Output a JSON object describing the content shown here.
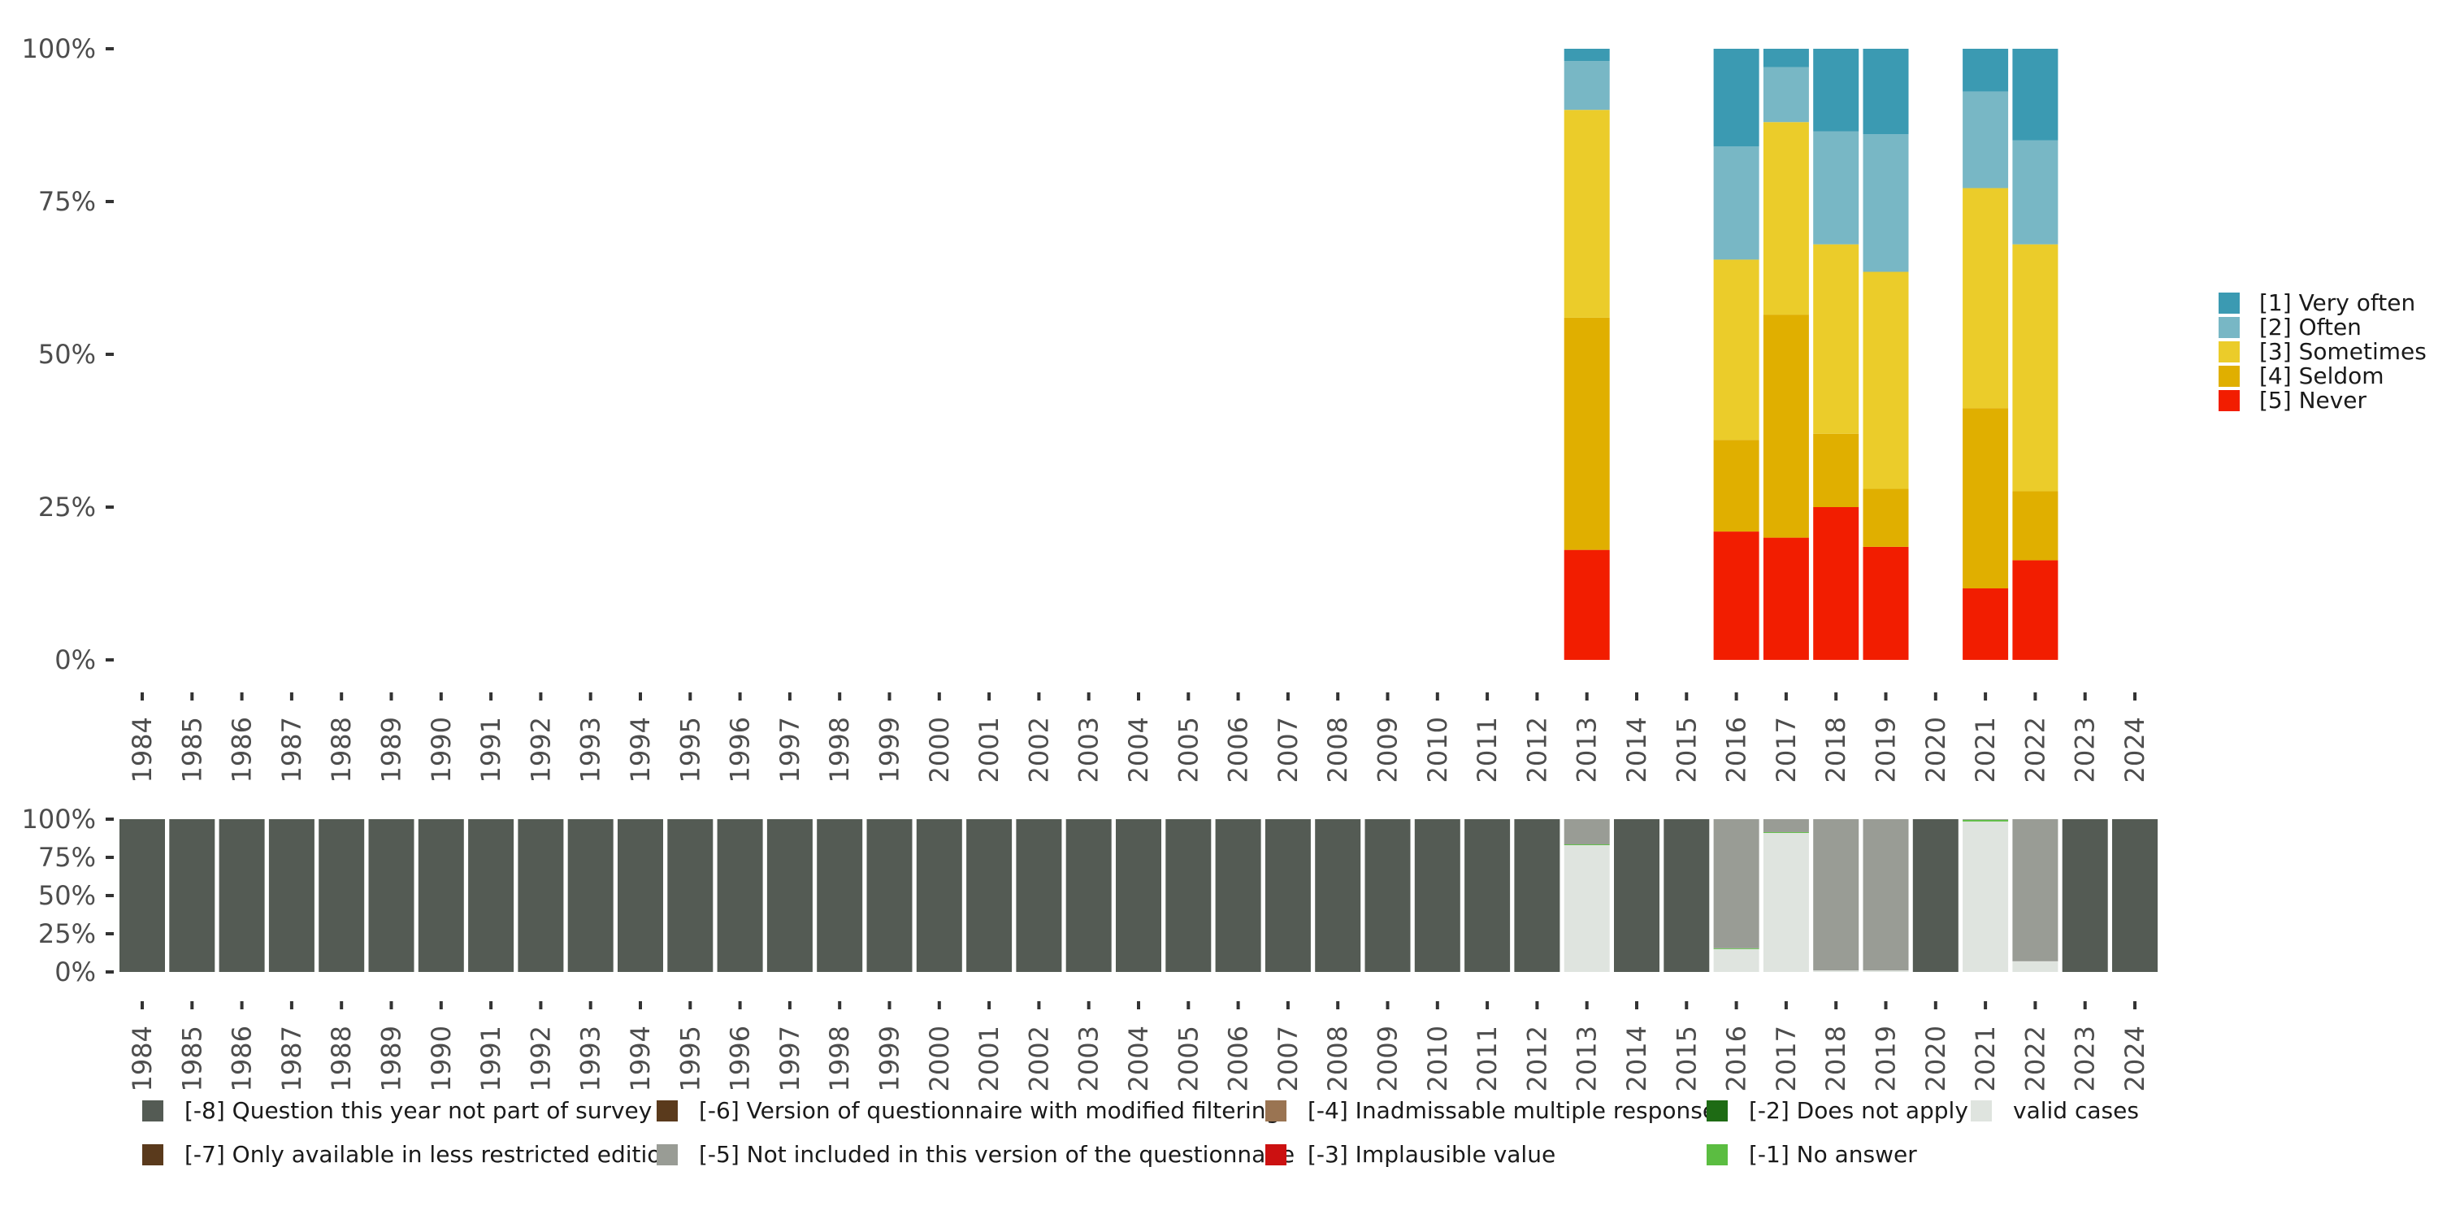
{
  "chart_data": [
    {
      "type": "bar",
      "stacked": true,
      "title": "",
      "xlabel": "",
      "ylabel": "",
      "ylim": [
        0,
        1
      ],
      "y_ticks": [
        "0%",
        "25%",
        "50%",
        "75%",
        "100%"
      ],
      "categories": [
        "1984",
        "1985",
        "1986",
        "1987",
        "1988",
        "1989",
        "1990",
        "1991",
        "1992",
        "1993",
        "1994",
        "1995",
        "1996",
        "1997",
        "1998",
        "1999",
        "2000",
        "2001",
        "2002",
        "2003",
        "2004",
        "2005",
        "2006",
        "2007",
        "2008",
        "2009",
        "2010",
        "2011",
        "2012",
        "2013",
        "2014",
        "2015",
        "2016",
        "2017",
        "2018",
        "2019",
        "2020",
        "2021",
        "2022",
        "2023",
        "2024"
      ],
      "legend_position": "right",
      "series": [
        {
          "name": "[5] Never",
          "color": "#f21d00",
          "values": {
            "2013": 0.18,
            "2016": 0.21,
            "2017": 0.2,
            "2018": 0.25,
            "2019": 0.185,
            "2021": 0.117,
            "2022": 0.163
          }
        },
        {
          "name": "[4] Seldom",
          "color": "#e0af00",
          "values": {
            "2013": 0.38,
            "2016": 0.15,
            "2017": 0.365,
            "2018": 0.12,
            "2019": 0.095,
            "2021": 0.295,
            "2022": 0.113
          }
        },
        {
          "name": "[3] Sometimes",
          "color": "#ebcc2a",
          "values": {
            "2013": 0.34,
            "2016": 0.295,
            "2017": 0.315,
            "2018": 0.31,
            "2019": 0.355,
            "2021": 0.36,
            "2022": 0.404
          }
        },
        {
          "name": "[2] Often",
          "color": "#78b7c5",
          "values": {
            "2013": 0.08,
            "2016": 0.185,
            "2017": 0.09,
            "2018": 0.185,
            "2019": 0.225,
            "2021": 0.158,
            "2022": 0.17
          }
        },
        {
          "name": "[1] Very often",
          "color": "#3b9ab2",
          "values": {
            "2013": 0.02,
            "2016": 0.16,
            "2017": 0.03,
            "2018": 0.135,
            "2019": 0.14,
            "2021": 0.07,
            "2022": 0.15
          }
        }
      ]
    },
    {
      "type": "bar",
      "stacked": true,
      "title": "",
      "xlabel": "",
      "ylabel": "",
      "ylim": [
        0,
        1
      ],
      "y_ticks": [
        "0%",
        "25%",
        "50%",
        "75%",
        "100%"
      ],
      "categories": [
        "1984",
        "1985",
        "1986",
        "1987",
        "1988",
        "1989",
        "1990",
        "1991",
        "1992",
        "1993",
        "1994",
        "1995",
        "1996",
        "1997",
        "1998",
        "1999",
        "2000",
        "2001",
        "2002",
        "2003",
        "2004",
        "2005",
        "2006",
        "2007",
        "2008",
        "2009",
        "2010",
        "2011",
        "2012",
        "2013",
        "2014",
        "2015",
        "2016",
        "2017",
        "2018",
        "2019",
        "2020",
        "2021",
        "2022",
        "2023",
        "2024"
      ],
      "legend_position": "bottom",
      "series": [
        {
          "name": "valid cases",
          "color": "#dfe4df",
          "values": {
            "2013": 0.83,
            "2016": 0.15,
            "2017": 0.91,
            "2018": 0.01,
            "2019": 0.01,
            "2021": 0.985,
            "2022": 0.07
          }
        },
        {
          "name": "[-1] No answer",
          "color": "#5bbd41",
          "values": {
            "2013": 0.005,
            "2016": 0.005,
            "2017": 0.005,
            "2021": 0.01
          }
        },
        {
          "name": "[-5] Not included in this version of the questionnaire",
          "color": "#999c95",
          "values": {
            "2013": 0.165,
            "2016": 0.845,
            "2017": 0.085,
            "2018": 0.99,
            "2019": 0.99,
            "2021": 0.005,
            "2022": 0.93
          }
        },
        {
          "name": "[-8] Question this year not part of survey",
          "color": "#545b54",
          "values": {
            "1984": 1,
            "1985": 1,
            "1986": 1,
            "1987": 1,
            "1988": 1,
            "1989": 1,
            "1990": 1,
            "1991": 1,
            "1992": 1,
            "1993": 1,
            "1994": 1,
            "1995": 1,
            "1996": 1,
            "1997": 1,
            "1998": 1,
            "1999": 1,
            "2000": 1,
            "2001": 1,
            "2002": 1,
            "2003": 1,
            "2004": 1,
            "2005": 1,
            "2006": 1,
            "2007": 1,
            "2008": 1,
            "2009": 1,
            "2010": 1,
            "2011": 1,
            "2012": 1,
            "2014": 1,
            "2015": 1,
            "2020": 1,
            "2023": 1,
            "2024": 1
          }
        }
      ],
      "legend_entries": [
        {
          "name": "[-8] Question this year not part of survey",
          "color": "#545b54"
        },
        {
          "name": "[-7] Only available in less restricted edition",
          "color": "#5a3a1c"
        },
        {
          "name": "[-6] Version of questionnaire with modified filtering",
          "color": "#5a3a1c"
        },
        {
          "name": "[-5] Not included in this version of the questionnaire",
          "color": "#999c95"
        },
        {
          "name": "[-4] Inadmissable multiple response",
          "color": "#9a7452"
        },
        {
          "name": "[-3] Implausible value",
          "color": "#cc1111"
        },
        {
          "name": "[-2] Does not apply",
          "color": "#1e6b14"
        },
        {
          "name": "[-1] No answer",
          "color": "#5bbd41"
        },
        {
          "name": "valid cases",
          "color": "#dfe4df"
        }
      ]
    }
  ]
}
